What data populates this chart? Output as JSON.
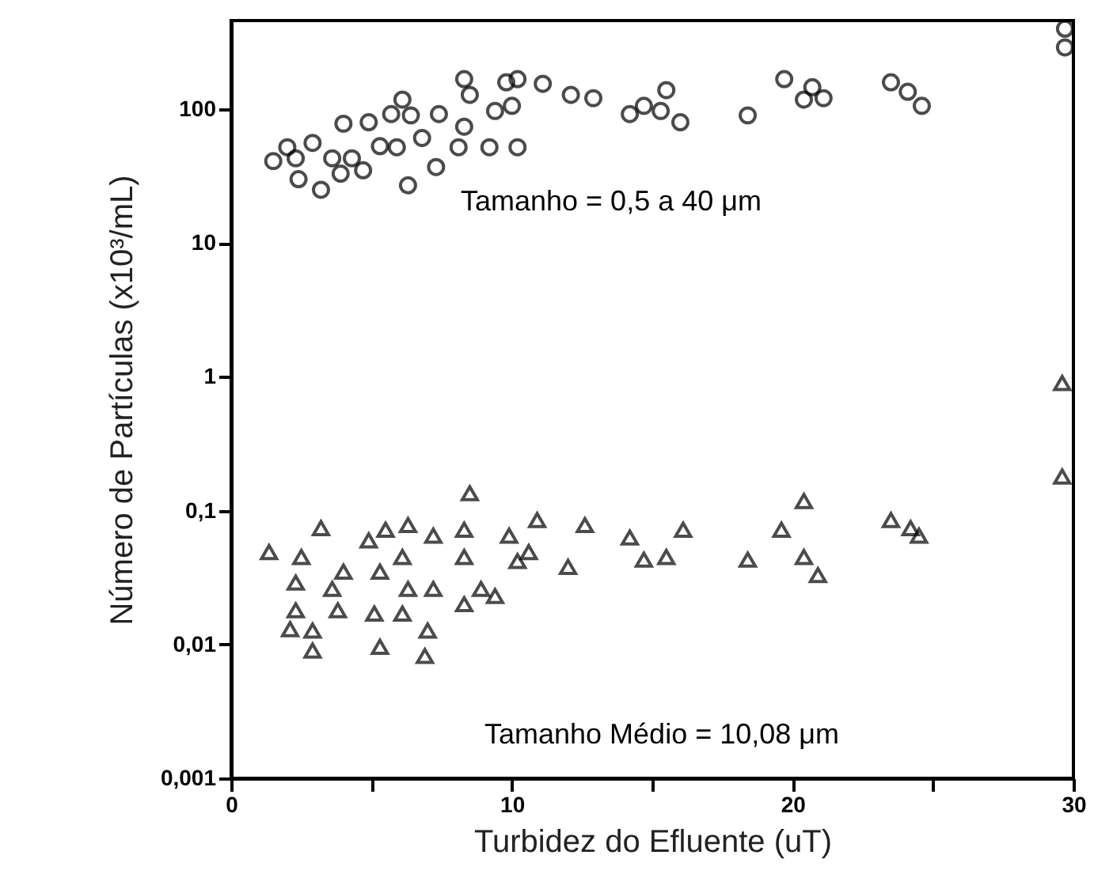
{
  "chart_data": {
    "type": "scatter",
    "xlabel": "Turbidez do Efluente (uT)",
    "ylabel": "Número de Partículas (x10³/mL)",
    "log": "y",
    "grid": false,
    "xlim": [
      0,
      30
    ],
    "ylim": [
      0.001,
      460
    ],
    "xticks": [
      0,
      {
        "value": 5,
        "label": null
      },
      10,
      {
        "value": 15,
        "label": null
      },
      20,
      {
        "value": 25,
        "label": null
      },
      30
    ],
    "yticks": [
      {
        "value": 0.001,
        "label": "0,001"
      },
      {
        "value": 0.01,
        "label": "0,01"
      },
      {
        "value": 0.1,
        "label": "0,1"
      },
      1,
      10,
      100
    ],
    "series": [
      {
        "name": "Tamanho = 0,5 a 40 μm",
        "color": "#000000",
        "marker": "circle",
        "x": [
          1.5,
          2.0,
          2.4,
          3.2,
          4.0,
          4.9,
          6.1,
          5.7,
          6.4,
          7.4,
          7.3,
          6.3,
          5.3,
          5.9,
          4.3,
          3.6,
          2.9,
          8.3,
          8.1,
          9.2,
          10.2,
          8.5,
          9.4,
          10.0,
          6.8,
          4.7,
          3.9,
          2.3,
          8.3,
          9.8,
          10.2,
          11.1,
          12.1,
          12.9,
          14.2,
          14.7,
          15.5,
          16.0,
          15.3,
          18.4,
          19.7,
          20.7,
          20.4,
          21.1,
          23.5,
          24.1,
          24.6,
          29.7,
          29.7
        ],
        "values": [
          41,
          52,
          30,
          25,
          78,
          80,
          118,
          92,
          90,
          92,
          37,
          27,
          53,
          52,
          43,
          43,
          56,
          74,
          52,
          52,
          52,
          128,
          97,
          106,
          61,
          35,
          33,
          43,
          168,
          159,
          168,
          155,
          128,
          121,
          92,
          106,
          139,
          80,
          97,
          90,
          168,
          146,
          118,
          121,
          159,
          135,
          106,
          400,
          290
        ]
      },
      {
        "name": "Tamanho Médio = 10,08 μm",
        "color": "#000000",
        "marker": "triangle",
        "x": [
          1.35,
          3.2,
          2.5,
          2.3,
          2.3,
          2.1,
          2.9,
          2.9,
          3.6,
          4.0,
          3.8,
          4.9,
          5.3,
          5.1,
          5.3,
          5.5,
          6.3,
          6.1,
          6.3,
          6.1,
          7.0,
          6.9,
          7.2,
          7.2,
          8.5,
          8.3,
          8.3,
          8.3,
          8.9,
          9.4,
          9.9,
          10.2,
          10.9,
          10.6,
          12.0,
          12.6,
          14.2,
          14.7,
          15.5,
          16.1,
          18.4,
          19.6,
          20.4,
          20.4,
          20.9,
          23.5,
          24.2,
          24.5,
          29.6,
          29.6
        ],
        "values": [
          0.049,
          0.074,
          0.045,
          0.029,
          0.018,
          0.013,
          0.009,
          0.0127,
          0.026,
          0.035,
          0.018,
          0.06,
          0.035,
          0.017,
          0.0096,
          0.072,
          0.078,
          0.045,
          0.026,
          0.017,
          0.0127,
          0.0082,
          0.065,
          0.026,
          0.135,
          0.072,
          0.045,
          0.02,
          0.026,
          0.023,
          0.065,
          0.042,
          0.085,
          0.049,
          0.038,
          0.078,
          0.063,
          0.043,
          0.045,
          0.072,
          0.043,
          0.072,
          0.118,
          0.045,
          0.033,
          0.085,
          0.074,
          0.065,
          0.9,
          0.18
        ]
      }
    ]
  }
}
